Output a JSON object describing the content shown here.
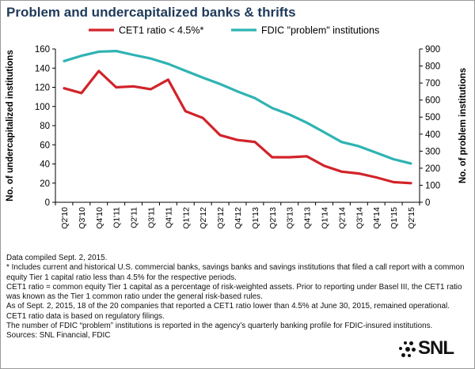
{
  "title": "Problem and undercapitalized banks & thrifts",
  "chart_data": {
    "type": "line",
    "categories": [
      "Q2'10",
      "Q3'10",
      "Q4'10",
      "Q1'11",
      "Q2'11",
      "Q3'11",
      "Q4'11",
      "Q1'12",
      "Q2'12",
      "Q3'12",
      "Q4'12",
      "Q1'13",
      "Q2'13",
      "Q3'13",
      "Q4'13",
      "Q1'14",
      "Q2'14",
      "Q3'14",
      "Q4'14",
      "Q1'15",
      "Q2'15"
    ],
    "tick_labels": [
      "Q2'10",
      "Q3'10",
      "Q4'10",
      "Q1'11",
      "Q2'11",
      "Q3'11",
      "Q4'11",
      "Q1'12",
      "Q2'12",
      "Q3'12",
      "Q4'12",
      "Q1'13",
      "Q2'13",
      "Q3'13",
      "Q4'13",
      "Q1'14",
      "Q2'14",
      "Q3'14",
      "Q4'14",
      "Q1'15",
      "Q2'15"
    ],
    "series": [
      {
        "name": "CET1 ratio < 4.5%*",
        "axis": "left",
        "color": "#d2232a",
        "values": [
          119,
          114,
          137,
          120,
          121,
          118,
          128,
          95,
          88,
          70,
          65,
          63,
          47,
          47,
          48,
          38,
          32,
          30,
          26,
          21,
          20
        ]
      },
      {
        "name": "FDIC \"problem\" institutions",
        "axis": "right",
        "color": "#2fb3b3",
        "values": [
          829,
          860,
          884,
          888,
          865,
          844,
          813,
          772,
          732,
          694,
          651,
          612,
          553,
          515,
          467,
          411,
          354,
          329,
          291,
          253,
          228
        ]
      }
    ],
    "ylabel_left": "No. of undercapitalized institutions",
    "ylabel_right": "No. of problem institutions",
    "ylim_left": [
      0,
      160
    ],
    "yticks_left": [
      0,
      20,
      40,
      60,
      80,
      100,
      120,
      140,
      160
    ],
    "ylim_right": [
      0,
      900
    ],
    "yticks_right": [
      0,
      100,
      200,
      300,
      400,
      500,
      600,
      700,
      800,
      900
    ],
    "grid": false,
    "legend_position": "top"
  },
  "notes": [
    "Data compiled Sept. 2, 2015.",
    "* Includes current and historical U.S. commercial banks, savings banks and savings institutions that filed a call report with a common equity Tier 1 capital ratio less than 4.5% for the respective periods.",
    "CET1 ratio = common equity Tier 1 capital as a percentage of risk-weighted assets. Prior to reporting under Basel III, the CET1 ratio was known as the Tier 1 common ratio under the general risk-based rules.",
    "As of Sept. 2, 2015, 18 of the 20 companies that reported a CET1 ratio lower than 4.5% at June 30, 2015, remained operational.",
    "CET1 ratio data is based on regulatory filings.",
    "The number of FDIC “problem” institutions is reported in the agency’s quarterly banking profile for FDIC-insured institutions.",
    "Sources: SNL Financial, FDIC"
  ],
  "logo": {
    "text": "SNL"
  }
}
